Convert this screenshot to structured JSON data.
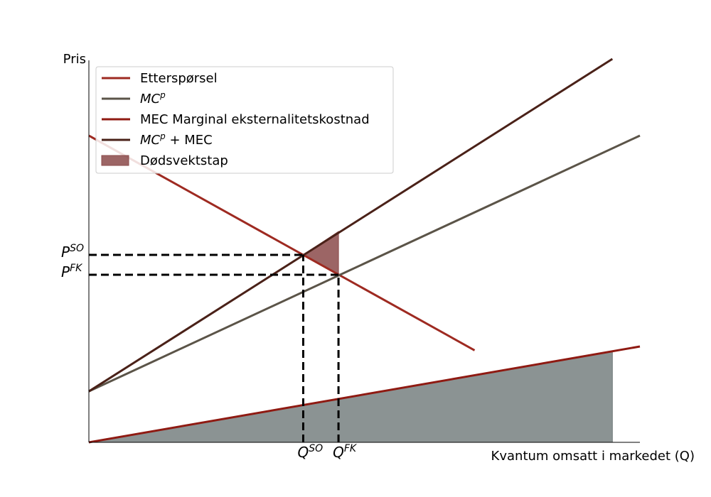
{
  "chart_data": {
    "type": "line",
    "xlabel": "Kvantum omsatt i markedet (Q)",
    "ylabel": "Pris",
    "xlim": [
      0,
      10
    ],
    "ylim": [
      0,
      10
    ],
    "grid": false,
    "legend_position": "top-left",
    "series": [
      {
        "key": "demand",
        "name": "Etterspørsel",
        "color": "#9e2a21",
        "x": [
          0,
          7.0
        ],
        "y": [
          8.0,
          2.4
        ]
      },
      {
        "key": "mcp",
        "name_base": "MC",
        "name_sup": "p",
        "color": "#5b5448",
        "x": [
          0,
          10
        ],
        "y": [
          1.33,
          8.0
        ]
      },
      {
        "key": "mec",
        "name": "MEC Marginal eksternalitetskostnad",
        "color": "#8f1a12",
        "x": [
          0,
          10
        ],
        "y": [
          0.0,
          2.5
        ]
      },
      {
        "key": "mcp_mec",
        "name_base": "MC",
        "name_sup": "p",
        "name_suffix": " + MEC",
        "color": "#4a2118",
        "x": [
          0,
          9.5
        ],
        "y": [
          1.33,
          10.0
        ]
      }
    ],
    "areas": [
      {
        "key": "dwl",
        "name": "Dødsvektstap",
        "color": "#8b4a4a",
        "opacity": 0.85,
        "points": [
          [
            3.89,
            4.89
          ],
          [
            4.53,
            5.5
          ],
          [
            4.53,
            4.37
          ]
        ]
      },
      {
        "key": "mec_area",
        "name": "",
        "color": "#6e7878",
        "opacity": 0.8,
        "points": [
          [
            0,
            0
          ],
          [
            9.5,
            2.375
          ],
          [
            9.5,
            0
          ]
        ]
      }
    ],
    "reference_lines": {
      "q_so": 3.89,
      "q_fk": 4.53,
      "p_so": 4.89,
      "p_fk": 4.37
    },
    "ticks": {
      "x": [
        {
          "key": "q_so",
          "base": "Q",
          "sup": "SO"
        },
        {
          "key": "q_fk",
          "base": "Q",
          "sup": "FK"
        }
      ],
      "y": [
        {
          "key": "p_so",
          "base": "P",
          "sup": "SO"
        },
        {
          "key": "p_fk",
          "base": "P",
          "sup": "FK"
        }
      ]
    }
  }
}
